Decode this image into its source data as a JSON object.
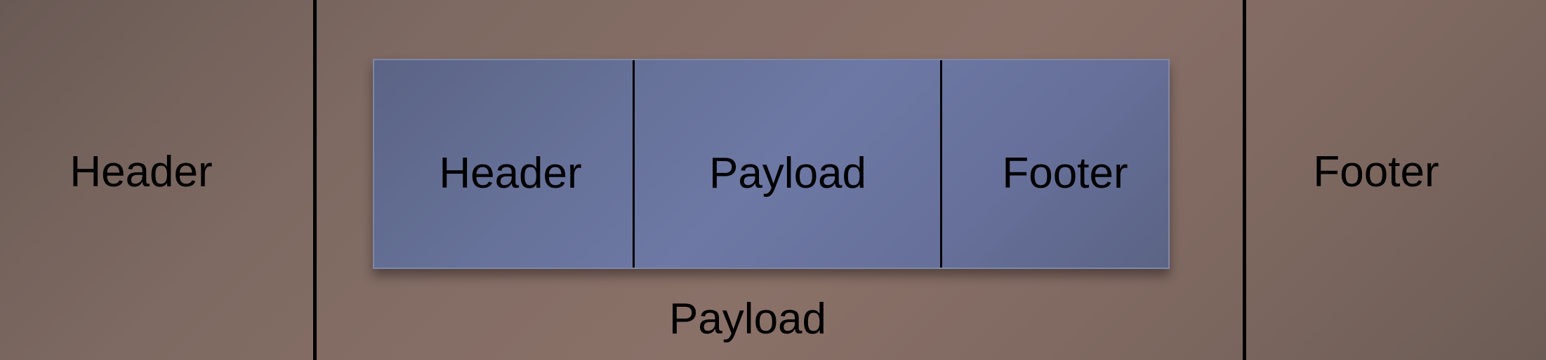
{
  "outer": {
    "header_label": "Header",
    "payload_label": "Payload",
    "footer_label": "Footer"
  },
  "inner": {
    "header_label": "Header",
    "payload_label": "Payload",
    "footer_label": "Footer"
  },
  "colors": {
    "outer_background": "#8a7168",
    "inner_background": "#6d78a4",
    "divider": "#000000",
    "text": "#000000"
  }
}
